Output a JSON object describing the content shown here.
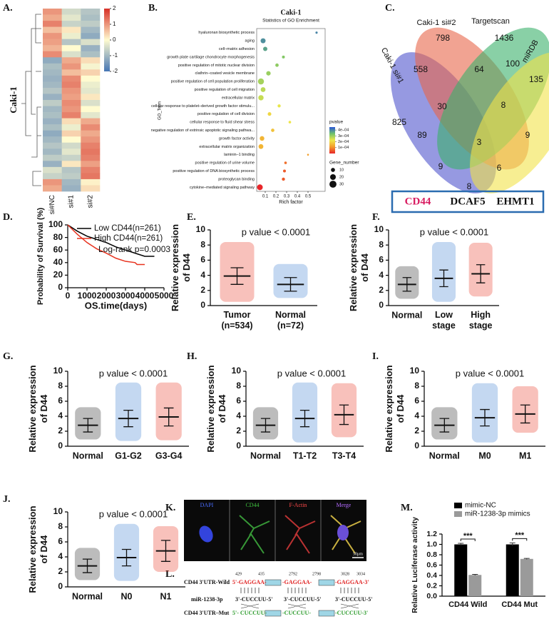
{
  "chart_data": [
    {
      "type": "heatmap",
      "label": "A.",
      "ylabel": "Caki-1",
      "columns": [
        "si#NC",
        "si#1",
        "si#2"
      ],
      "values": [
        [
          1.0,
          -0.5,
          -0.8
        ],
        [
          0.8,
          -0.3,
          -0.9
        ],
        [
          1.2,
          -0.6,
          -0.7
        ],
        [
          0.6,
          0.2,
          -1.0
        ],
        [
          1.0,
          -0.2,
          -1.2
        ],
        [
          0.9,
          -0.8,
          -0.4
        ],
        [
          0.7,
          0.0,
          -1.1
        ],
        [
          1.1,
          -0.4,
          -0.9
        ],
        [
          -1.2,
          0.8,
          0.3
        ],
        [
          -0.9,
          1.0,
          -0.1
        ],
        [
          -1.0,
          0.6,
          0.4
        ],
        [
          -1.1,
          1.1,
          0.0
        ],
        [
          -1.0,
          1.2,
          -0.2
        ],
        [
          -0.8,
          1.0,
          -0.3
        ],
        [
          -1.1,
          0.9,
          0.2
        ],
        [
          -0.7,
          1.1,
          -0.4
        ],
        [
          -1.0,
          1.0,
          0.0
        ],
        [
          -0.9,
          1.2,
          -0.3
        ],
        [
          -1.1,
          0.3,
          0.8
        ],
        [
          -0.9,
          -0.2,
          1.1
        ],
        [
          -1.2,
          0.4,
          0.8
        ],
        [
          -1.0,
          0.0,
          1.0
        ],
        [
          -0.8,
          -0.5,
          1.2
        ],
        [
          -1.0,
          -0.3,
          1.3
        ],
        [
          -0.7,
          -0.6,
          1.2
        ],
        [
          -1.1,
          0.2,
          0.9
        ],
        [
          -0.4,
          -0.8,
          1.2
        ],
        [
          -0.6,
          -0.7,
          1.3
        ],
        [
          1.0,
          -1.0,
          0.1
        ],
        [
          0.8,
          -1.1,
          0.3
        ]
      ],
      "clim": [
        -2,
        2
      ],
      "cticks": [
        2,
        1,
        0,
        -1,
        -2
      ],
      "colors": [
        "#4575b4",
        "#fffbd0",
        "#d73027"
      ]
    },
    {
      "type": "dot",
      "label": "B.",
      "title": "Caki-1",
      "subtitle": "Statistics of GO Enrichment",
      "ylabel": "GO_Term",
      "xlabel": "Rich factor",
      "categories": [
        "hyaluronan biosynthetic process",
        "aging",
        "cell–matrix adhesion",
        "growth plate cartilage chondrocyte morphogenesis",
        "positive regulation of mitotic nuclear division",
        "clathrin–coated vesicle membrane",
        "positive regulation of cell population proliferation",
        "positive regulation of cell migration",
        "extracellular matrix",
        "cellular response to platelet–derived growth factor stimulu...",
        "positive regulation of cell division",
        "cellular response to fluid shear stress",
        "negative regulation of extrinsic apoptotic signaling pathwa...",
        "growth factor activity",
        "extracellular matrix organization",
        "laminin–1 binding",
        "positive regulation of urine volume",
        "positive regulation of DNA biosynthetic process",
        "proteoglycan binding",
        "cytokine–mediated signaling pathway"
      ],
      "x": [
        0.58,
        0.08,
        0.1,
        0.27,
        0.21,
        0.13,
        0.06,
        0.08,
        0.06,
        0.23,
        0.14,
        0.33,
        0.17,
        0.07,
        0.06,
        0.5,
        0.29,
        0.28,
        0.27,
        0.05
      ],
      "pvalue": [
        5e-05,
        6e-05,
        8e-05,
        0.00013,
        0.00014,
        0.00015,
        0.00016,
        0.00018,
        0.00019,
        0.00022,
        0.00025,
        0.00023,
        0.00028,
        0.0003,
        0.0003,
        0.00033,
        0.00038,
        0.0004,
        0.0004,
        0.00045
      ],
      "gene_number": [
        3,
        15,
        11,
        5,
        7,
        12,
        22,
        14,
        17,
        6,
        8,
        4,
        7,
        13,
        14,
        2,
        4,
        5,
        6,
        20
      ],
      "xlim": [
        0.02,
        0.66
      ],
      "xticks": [
        0.1,
        0.2,
        0.3,
        0.4,
        0.5
      ],
      "color_title": "pvalue",
      "clim": [
        0,
        0.00045
      ],
      "cticks": [
        {
          "value": 0.0004,
          "label": "4e–04"
        },
        {
          "value": 0.0003,
          "label": "3e–04"
        },
        {
          "value": 0.0002,
          "label": "2e–04"
        },
        {
          "value": 0.0001,
          "label": "1e–04"
        }
      ],
      "colors": [
        "#e8262a",
        "#f49b2b",
        "#eee84a",
        "#6fc26b",
        "#2a55d6"
      ],
      "size_title": "Gene_number",
      "size_ticks": [
        10,
        20,
        30
      ]
    },
    {
      "type": "line",
      "label": "D.",
      "xlabel": "OS.time(days)",
      "ylabel": "Probability of Survival (%)",
      "xlim": [
        0,
        5000
      ],
      "xticks": [
        0,
        1000,
        2000,
        3000,
        4000,
        5000
      ],
      "ylim": [
        0,
        100
      ],
      "yticks": [
        0,
        20,
        40,
        60,
        80,
        100
      ],
      "series": [
        {
          "name": "Low  CD44(n=261)",
          "color": "#000000",
          "x": [
            0,
            500,
            1000,
            1500,
            2000,
            2500,
            3000,
            3500,
            4000,
            4500
          ],
          "values": [
            100,
            90,
            82,
            77,
            72,
            65,
            60,
            55,
            50,
            50
          ]
        },
        {
          "name": "High CD44(n=261)",
          "color": "#e8331f",
          "x": [
            0,
            500,
            1000,
            1500,
            2000,
            2500,
            3000,
            3500,
            3600,
            4000
          ],
          "values": [
            100,
            85,
            72,
            62,
            55,
            47,
            42,
            40,
            37,
            37
          ]
        }
      ],
      "annotation": "Log-rank p=0.0003"
    },
    {
      "type": "strip",
      "label": "E.",
      "ylabel": "Relative expression\nof D44",
      "annotation": "p value < 0.0001",
      "categories": [
        "Tumor\n(n=534)",
        "Normal\n(n=72)"
      ],
      "colors": [
        "#e8331f",
        "#3a7fd0"
      ],
      "values": [
        3.9,
        2.8
      ],
      "sd": [
        1.1,
        0.9
      ],
      "min": [
        0.5,
        1.0
      ],
      "max": [
        8.4,
        5.5
      ],
      "ylim": [
        0,
        10
      ],
      "yticks": [
        0,
        2,
        4,
        6,
        8,
        10
      ]
    },
    {
      "type": "strip",
      "label": "F.",
      "ylabel": "Relative expression\nof D44",
      "annotation": "p value < 0.0001",
      "categories": [
        "Normal",
        "Low\nstage",
        "High\nstage"
      ],
      "colors": [
        "#222222",
        "#3a7fd0",
        "#e8331f"
      ],
      "values": [
        2.8,
        3.6,
        4.2
      ],
      "sd": [
        0.9,
        1.1,
        1.2
      ],
      "min": [
        0.9,
        0.5,
        1.2
      ],
      "max": [
        5.2,
        8.4,
        8.3
      ],
      "ylim": [
        0,
        10
      ],
      "yticks": [
        0,
        2,
        4,
        6,
        8,
        10
      ]
    },
    {
      "type": "strip",
      "label": "G.",
      "ylabel": "Relative expression\nof D44",
      "annotation": "p value < 0.0001",
      "categories": [
        "Normal",
        "G1-G2",
        "G3-G4"
      ],
      "colors": [
        "#222222",
        "#3a7fd0",
        "#e8331f"
      ],
      "values": [
        2.8,
        3.7,
        3.9
      ],
      "sd": [
        0.9,
        1.1,
        1.2
      ],
      "min": [
        0.9,
        0.7,
        0.8
      ],
      "max": [
        5.2,
        8.5,
        8.5
      ],
      "ylim": [
        0,
        10
      ],
      "yticks": [
        0,
        2,
        4,
        6,
        8,
        10
      ]
    },
    {
      "type": "strip",
      "label": "H.",
      "ylabel": "Relative expression\nof D44",
      "annotation": "p value < 0.0001",
      "categories": [
        "Normal",
        "T1-T2",
        "T3-T4"
      ],
      "colors": [
        "#222222",
        "#3a7fd0",
        "#e8331f"
      ],
      "values": [
        2.8,
        3.7,
        4.2
      ],
      "sd": [
        0.9,
        1.1,
        1.3
      ],
      "min": [
        0.9,
        0.5,
        1.2
      ],
      "max": [
        5.2,
        8.5,
        8.4
      ],
      "ylim": [
        0,
        10
      ],
      "yticks": [
        0,
        2,
        4,
        6,
        8,
        10
      ]
    },
    {
      "type": "strip",
      "label": "I.",
      "ylabel": "Relative expression\nof D44",
      "annotation": "p value < 0.0001",
      "categories": [
        "Normal",
        "M0",
        "M1"
      ],
      "colors": [
        "#222222",
        "#3a7fd0",
        "#e8331f"
      ],
      "values": [
        2.8,
        3.8,
        4.3
      ],
      "sd": [
        0.9,
        1.1,
        1.2
      ],
      "min": [
        0.9,
        0.5,
        1.8
      ],
      "max": [
        5.2,
        8.4,
        8.0
      ],
      "ylim": [
        0,
        10
      ],
      "yticks": [
        0,
        2,
        4,
        6,
        8,
        10
      ]
    },
    {
      "type": "strip",
      "label": "J.",
      "ylabel": "Relative expression\nof D44",
      "annotation": "p value < 0.0001",
      "categories": [
        "Normal",
        "N0",
        "N1"
      ],
      "colors": [
        "#222222",
        "#3a7fd0",
        "#e8331f"
      ],
      "values": [
        2.8,
        3.9,
        4.8
      ],
      "sd": [
        0.9,
        1.1,
        1.4
      ],
      "min": [
        0.9,
        0.8,
        2.0
      ],
      "max": [
        5.2,
        8.4,
        8.1
      ],
      "ylim": [
        0,
        10
      ],
      "yticks": [
        0,
        2,
        4,
        6,
        8,
        10
      ]
    },
    {
      "type": "bar",
      "label": "M.",
      "ylabel": "Relative Luciferase activity",
      "categories": [
        "CD44 Wild",
        "CD44 Mut"
      ],
      "series": [
        {
          "name": "mimic-NC",
          "color": "#000000",
          "values": [
            1.0,
            1.0
          ],
          "errors": [
            0.02,
            0.03
          ]
        },
        {
          "name": "miR-1238-3p mimics",
          "color": "#9a9a9a",
          "values": [
            0.41,
            0.72
          ],
          "errors": [
            0.01,
            0.01
          ]
        }
      ],
      "ylim": [
        0,
        1.2
      ],
      "yticks": [
        {
          "value": 0,
          "label": "0.0"
        },
        0.2,
        0.4,
        0.6,
        0.8,
        {
          "value": 1,
          "label": "1.0"
        },
        1.2
      ],
      "annotations": [
        "***",
        "***"
      ]
    }
  ],
  "venn": {
    "label": "C.",
    "sets": [
      "Caki-1 si#1",
      "Caki-1 si#2",
      "Targetscan",
      "miRDB"
    ],
    "counts": [
      825,
      798,
      1436,
      135,
      558,
      64,
      100,
      30,
      8,
      89,
      3,
      9,
      9,
      6,
      8
    ],
    "genes": [
      "CD44",
      "DCAF5",
      "EHMT1"
    ]
  },
  "microscopy": {
    "label": "K.",
    "channels": [
      "DAPI",
      "CD44",
      "F-Actin",
      "Merge"
    ],
    "scale_bar": "50μm"
  },
  "sequence": {
    "label": "L.",
    "wild_name": "CD44 3'UTR-Wild",
    "mirna_name": "miR-1238-3p",
    "mut_name": "CD44 3'UTR–Mut",
    "positions": [
      429,
      435,
      2792,
      2798,
      3028,
      3034
    ],
    "wild": [
      "5'-GAGGAA-",
      "-GAGGAA-",
      "-GAGGAA-3'"
    ],
    "mirna": [
      "3'-CUCCUU-5'",
      "3'-CUCCUU-5'",
      "3'-CUCCUU-5'"
    ],
    "mut": [
      "5'- CUCCUU-",
      "-CUCCUU-",
      "-CUCCUU-3'"
    ]
  }
}
